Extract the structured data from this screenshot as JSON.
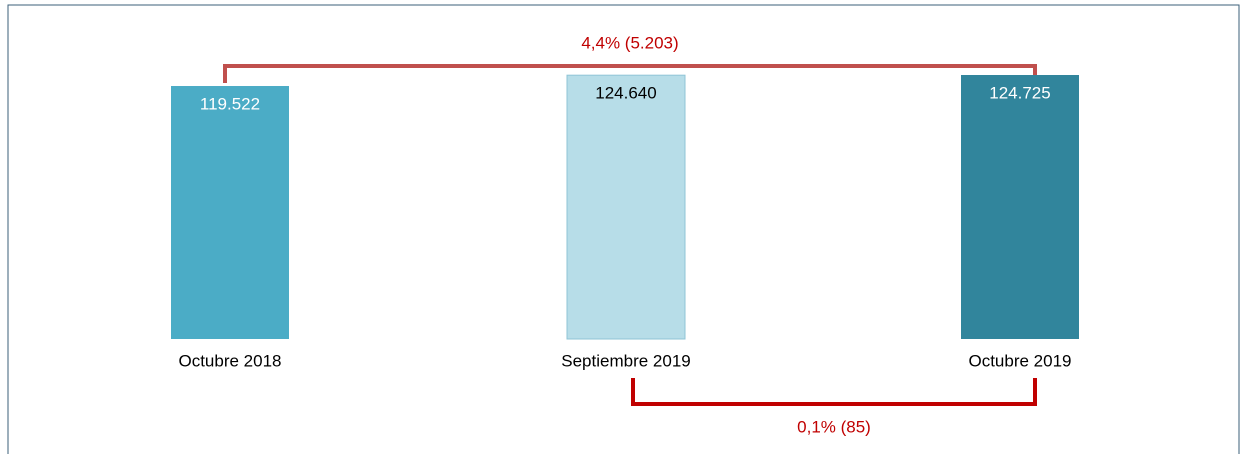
{
  "chart_data": {
    "type": "bar",
    "categories": [
      "Octubre 2018",
      "Septiembre 2019",
      "Octubre 2019"
    ],
    "values": [
      119522,
      124640,
      124725
    ],
    "value_labels": [
      "119.522",
      "124.640",
      "124.725"
    ],
    "colors": [
      "#4bacc6",
      "#b7dde8",
      "#31859c"
    ],
    "annotations": [
      "4,4% (5.203)",
      "0,1% (85)"
    ]
  }
}
